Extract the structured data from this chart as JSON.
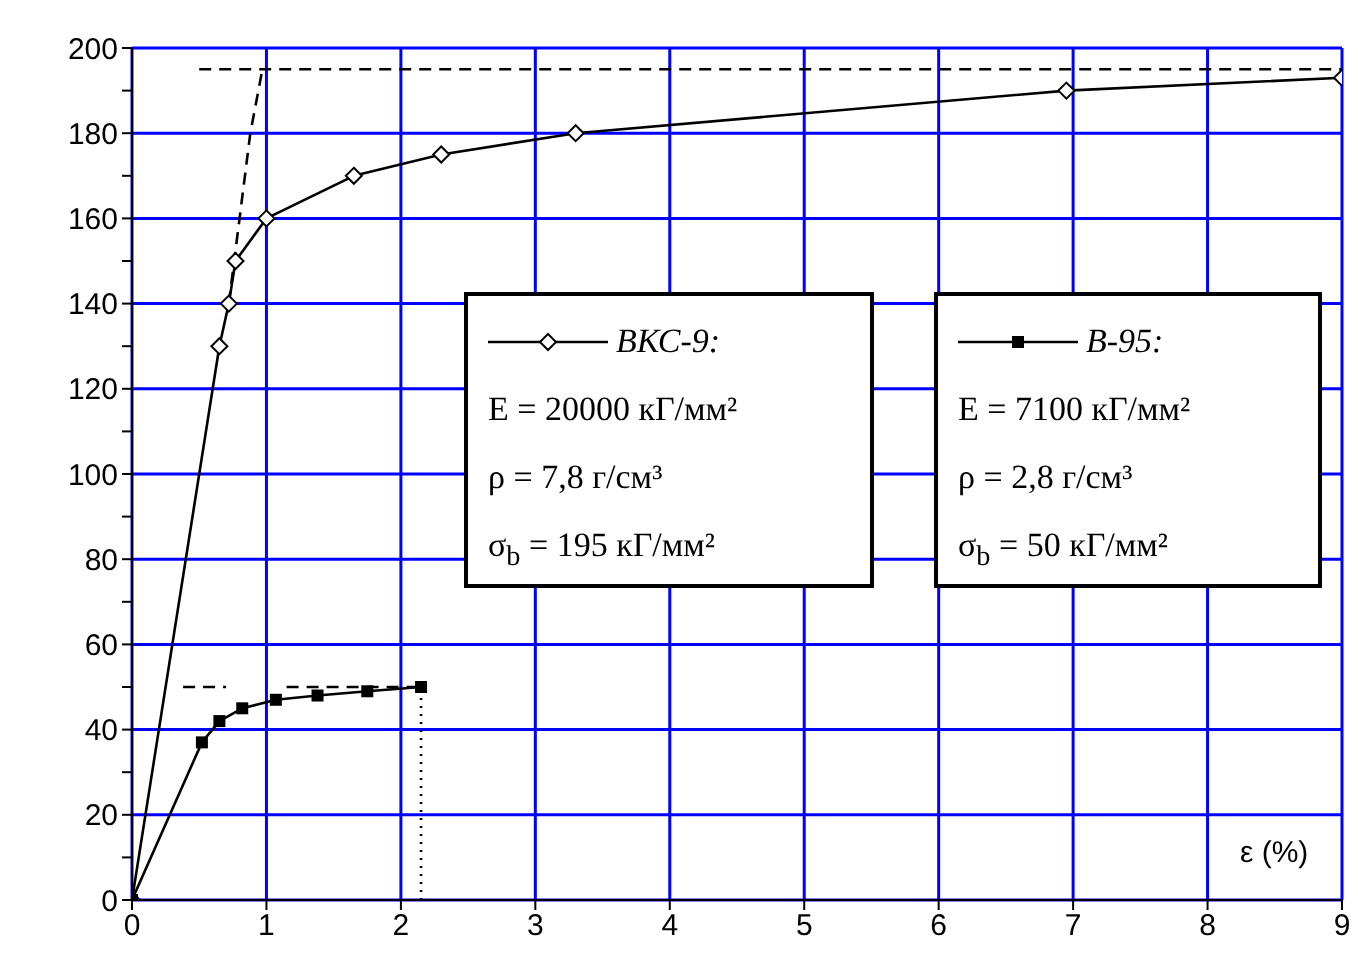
{
  "chart_data": {
    "type": "line",
    "xlabel": "ε (%)",
    "xlim": [
      0,
      9
    ],
    "xticks": [
      0,
      1,
      2,
      3,
      4,
      5,
      6,
      7,
      8,
      9
    ],
    "ylim": [
      0,
      200
    ],
    "yticks": [
      0,
      {
        "value": 10,
        "label": null
      },
      20,
      {
        "value": 30,
        "label": null
      },
      40,
      {
        "value": 50,
        "label": null
      },
      60,
      {
        "value": 70,
        "label": null
      },
      80,
      {
        "value": 90,
        "label": null
      },
      100,
      {
        "value": 110,
        "label": null
      },
      120,
      {
        "value": 130,
        "label": null
      },
      140,
      {
        "value": 150,
        "label": null
      },
      160,
      {
        "value": 170,
        "label": null
      },
      180,
      {
        "value": 190,
        "label": null
      },
      200
    ],
    "grid": true,
    "legend": "right",
    "series": [
      {
        "name": "ВКС-9:",
        "color": "#000000",
        "marker": "diamond",
        "line_style": "solid",
        "x": [
          0,
          0.65,
          0.72,
          0.77,
          1.0,
          1.65,
          2.3,
          3.3,
          6.95,
          9
        ],
        "values": [
          0,
          130,
          140,
          150,
          160,
          170,
          175,
          180,
          190,
          193
        ]
      },
      {
        "color": "#000000",
        "marker": "none",
        "line_style": "dashed",
        "x": [
          0.72,
          0.8,
          0.88,
          0.97
        ],
        "values": [
          140,
          160,
          180,
          195
        ]
      },
      {
        "color": "#000000",
        "marker": "none",
        "line_style": "dashed",
        "x": [
          0.5,
          9
        ],
        "values": [
          195,
          195
        ]
      },
      {
        "name": "В-95:",
        "color": "#000000",
        "marker": "square",
        "line_style": "solid",
        "x": [
          0,
          0.52,
          0.65,
          0.82,
          1.07,
          1.38,
          1.75,
          2.15
        ],
        "values": [
          0,
          37,
          42,
          45,
          47,
          48,
          49,
          50
        ]
      },
      {
        "color": "#000000",
        "marker": "none",
        "line_style": "dashed",
        "x": [
          0.38,
          0.7,
          0.9,
          1.15,
          2.15
        ],
        "values": [
          50,
          50,
          null,
          50,
          50
        ]
      },
      {
        "color": "#000000",
        "marker": "none",
        "line_style": "dotted",
        "x": [
          2.15,
          2.15
        ],
        "values": [
          0,
          50
        ]
      }
    ],
    "annotations": [
      "E = 20000 кГ/мм²",
      "ρ = 7,8 г/см³",
      "σ$_{b}$ = 195 кГ/мм²",
      "E = 7100 кГ/мм²",
      "ρ = 2,8 г/см³",
      "σ$_{b}$ = 50 кГ/мм²"
    ]
  }
}
